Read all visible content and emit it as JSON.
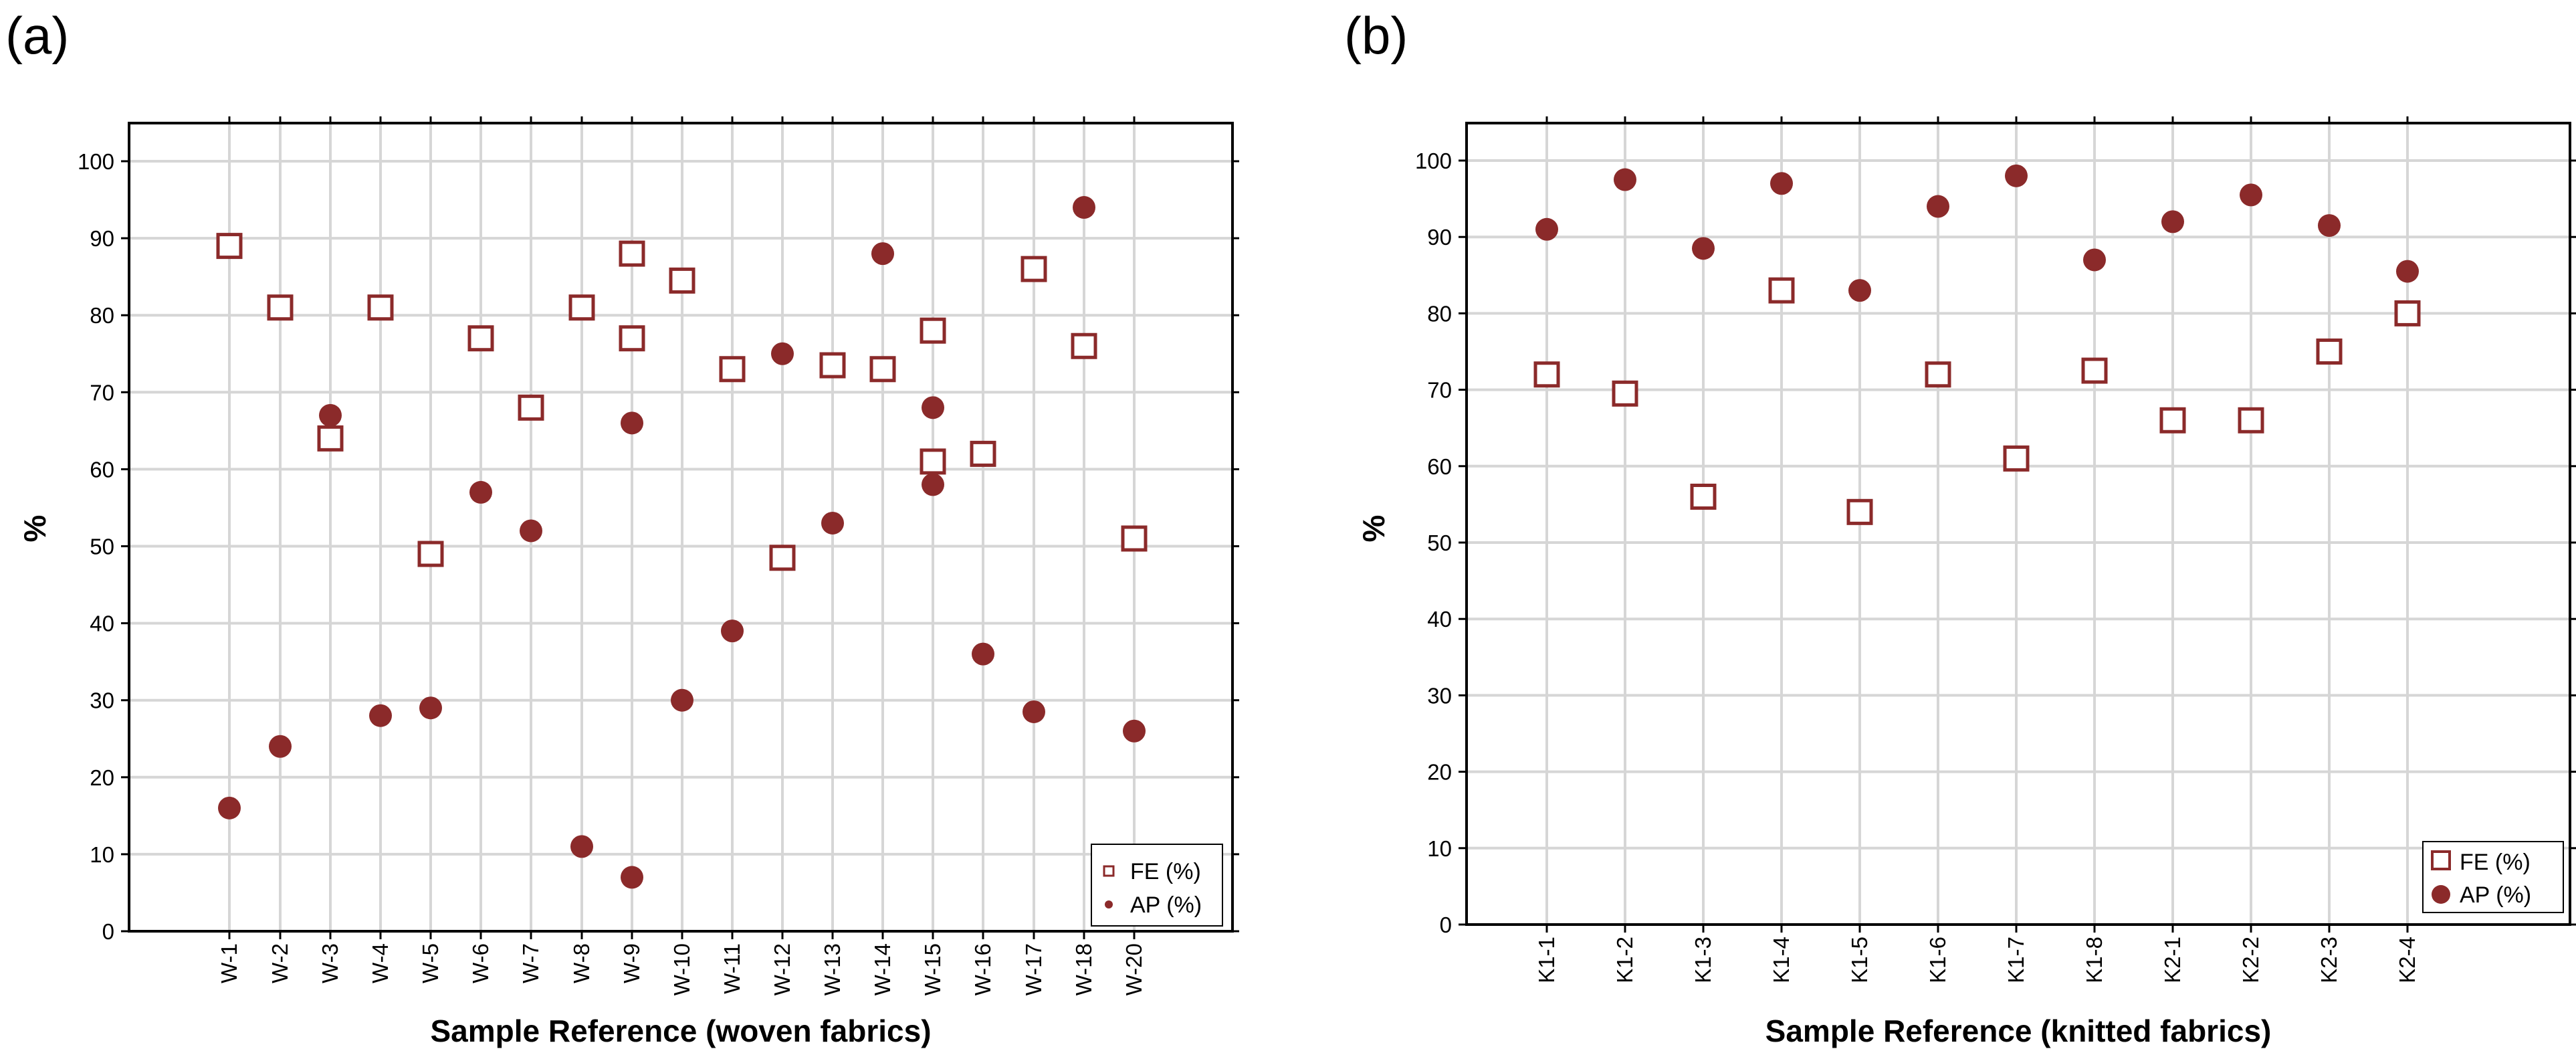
{
  "figure": {
    "background": "#ffffff",
    "marker_color": "#8b2a2a"
  },
  "chart_data": [
    {
      "panel": "(a)",
      "type": "scatter",
      "title": "",
      "xlabel": "Sample Reference (woven fabrics)",
      "ylabel": "%",
      "ylim": [
        0,
        105
      ],
      "yticks": [
        0,
        10,
        20,
        30,
        40,
        50,
        60,
        70,
        80,
        90,
        100
      ],
      "grid": true,
      "legend_position": "bottom-right",
      "categories": [
        "W-1",
        "W-2",
        "W-3",
        "W-4",
        "W-5",
        "W-6",
        "W-7",
        "W-8",
        "W-9",
        "W-9",
        "W-10",
        "W-11",
        "W-12",
        "W-13",
        "W-14",
        "W-15",
        "W-15",
        "W-16",
        "W-17",
        "W-18",
        "W-20"
      ],
      "series": [
        {
          "name": "FE (%)",
          "marker": "open-square",
          "values": [
            89,
            81,
            64,
            81,
            49,
            77,
            68,
            81,
            88,
            77,
            84.5,
            73,
            48.5,
            73.5,
            73,
            78,
            61,
            62,
            86,
            76,
            51
          ]
        },
        {
          "name": "AP (%)",
          "marker": "filled-circle",
          "values": [
            16,
            24,
            67,
            28,
            29,
            57,
            52,
            11,
            66,
            7,
            30,
            39,
            75,
            53,
            88,
            68,
            58,
            36,
            28.5,
            94,
            26
          ]
        }
      ]
    },
    {
      "panel": "(b)",
      "type": "scatter",
      "title": "",
      "xlabel": "Sample Reference (knitted fabrics)",
      "ylabel": "%",
      "ylim": [
        0,
        105
      ],
      "yticks": [
        0,
        10,
        20,
        30,
        40,
        50,
        60,
        70,
        80,
        90,
        100
      ],
      "grid": true,
      "legend_position": "bottom-right",
      "categories": [
        "K1-1",
        "K1-2",
        "K1-3",
        "K1-4",
        "K1-5",
        "K1-6",
        "K1-7",
        "K1-8",
        "K2-1",
        "K2-2",
        "K2-3",
        "K2-4"
      ],
      "series": [
        {
          "name": "FE (%)",
          "marker": "open-square",
          "values": [
            72,
            69.5,
            56,
            83,
            54,
            72,
            61,
            72.5,
            66,
            66,
            75,
            80
          ]
        },
        {
          "name": "AP (%)",
          "marker": "filled-circle",
          "values": [
            91,
            97.5,
            88.5,
            97,
            83,
            94,
            98,
            87,
            92,
            95.5,
            91.5,
            85.5
          ]
        }
      ]
    }
  ]
}
